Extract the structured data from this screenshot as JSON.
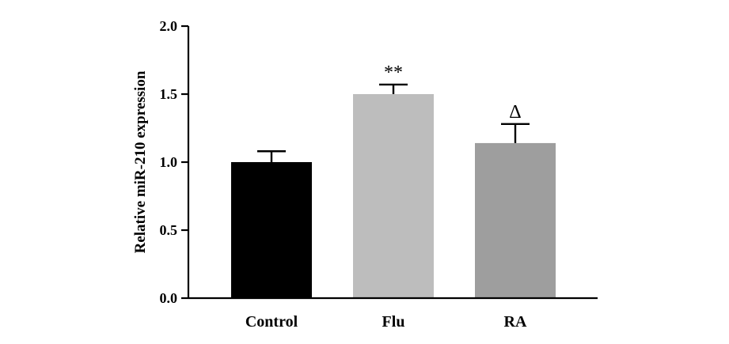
{
  "chart_data": {
    "type": "bar",
    "categories": [
      "Control",
      "Flu",
      "RA"
    ],
    "values": [
      1.0,
      1.5,
      1.14
    ],
    "error_upper": [
      1.08,
      1.57,
      1.28
    ],
    "annotations": [
      "",
      "**",
      "Δ"
    ],
    "bar_colors": [
      "#000000",
      "#bdbdbd",
      "#9e9e9e"
    ],
    "ylabel": "Relative miR-210 expression",
    "xlabel": "",
    "ylim": [
      0,
      2.0
    ],
    "yticks": [
      "0.0",
      "0.5",
      "1.0",
      "1.5",
      "2.0"
    ],
    "grid": false
  }
}
